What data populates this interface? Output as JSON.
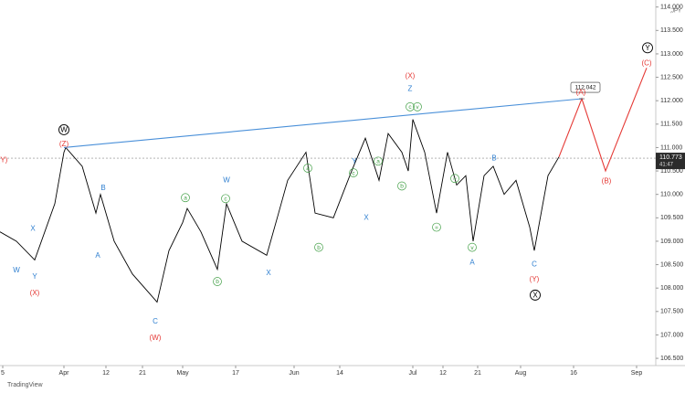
{
  "chart_data": {
    "type": "line",
    "symbol": ",JPY",
    "brand": "TradingView",
    "xlim": [
      0,
      143.6
    ],
    "ylim": [
      106.15,
      114.15
    ],
    "xticks": [
      {
        "value": 0.6,
        "label": "5"
      },
      {
        "value": 14,
        "label": "Apr"
      },
      {
        "value": 23.2,
        "label": "12"
      },
      {
        "value": 31.2,
        "label": "21"
      },
      {
        "value": 40,
        "label": "May"
      },
      {
        "value": 51.6,
        "label": "17"
      },
      {
        "value": 64.4,
        "label": "Jun"
      },
      {
        "value": 74.4,
        "label": "14"
      },
      {
        "value": 90.4,
        "label": "Jul"
      },
      {
        "value": 97,
        "label": "12"
      },
      {
        "value": 104.6,
        "label": "21"
      },
      {
        "value": 114,
        "label": "Aug"
      },
      {
        "value": 125.6,
        "label": "16"
      },
      {
        "value": 139.4,
        "label": "Sep"
      }
    ],
    "yticks": [
      {
        "value": 106.5,
        "label": "106.500"
      },
      {
        "value": 107,
        "label": "107.000"
      },
      {
        "value": 107.5,
        "label": "107.500"
      },
      {
        "value": 108,
        "label": "108.000"
      },
      {
        "value": 108.5,
        "label": "108.500"
      },
      {
        "value": 109,
        "label": "109.000"
      },
      {
        "value": 109.5,
        "label": "109.500"
      },
      {
        "value": 110,
        "label": "110.000"
      },
      {
        "value": 110.5,
        "label": "110.500"
      },
      {
        "value": 111,
        "label": "111.000"
      },
      {
        "value": 111.5,
        "label": "111.500"
      },
      {
        "value": 112,
        "label": "112.000"
      },
      {
        "value": 112.5,
        "label": "112.500"
      },
      {
        "value": 113,
        "label": "113.000"
      },
      {
        "value": 113.5,
        "label": "113.500"
      },
      {
        "value": 114,
        "label": "114.000"
      }
    ],
    "current_price": {
      "value": 110.773,
      "label": "110.773",
      "timer": "41:47"
    },
    "target": {
      "value": 112.042,
      "label": "112.042"
    },
    "series": [
      {
        "name": "USDJPY",
        "color": "#000000",
        "x": [
          0,
          3.6,
          7.6,
          12,
          14,
          14.4,
          18,
          21,
          22,
          25,
          29,
          34.4,
          37,
          40,
          41,
          44,
          47.6,
          49.6,
          53,
          58.4,
          61,
          63,
          67,
          69,
          73,
          77,
          80,
          83,
          85,
          88,
          89.4,
          90.4,
          93,
          95.6,
          98,
          100,
          102,
          103.6,
          106,
          108,
          110.4,
          113,
          116,
          117,
          120,
          122.4
        ],
        "values": [
          109.2,
          109.0,
          108.6,
          109.8,
          110.9,
          111.0,
          110.6,
          109.6,
          110.0,
          109.0,
          108.3,
          107.7,
          108.8,
          109.4,
          109.7,
          109.2,
          108.4,
          109.8,
          109.0,
          108.7,
          109.6,
          110.3,
          110.9,
          109.6,
          109.5,
          110.5,
          111.2,
          110.3,
          111.3,
          110.9,
          110.5,
          111.6,
          110.9,
          109.6,
          110.9,
          110.2,
          110.4,
          109.0,
          110.4,
          110.6,
          110.0,
          110.3,
          109.3,
          108.8,
          110.4,
          110.8
        ]
      },
      {
        "name": "Projection",
        "color": "#e53935",
        "x": [
          122.4,
          127.4,
          132.6,
          141.6
        ],
        "values": [
          110.8,
          112.042,
          110.5,
          112.7
        ]
      },
      {
        "name": "Trendline",
        "color": "#4a90d9",
        "x": [
          14,
          127.4
        ],
        "values": [
          111.0,
          112.042
        ]
      }
    ],
    "annotations": [
      {
        "text": "(Y)",
        "color": "#e53935",
        "x": 0.6,
        "y": 110.73
      },
      {
        "text": "X",
        "color": "#2f7fd0",
        "x": 7.2,
        "y": 109.26
      },
      {
        "text": "W",
        "color": "#2f7fd0",
        "x": 3.6,
        "y": 108.38
      },
      {
        "text": "Y",
        "color": "#2f7fd0",
        "x": 7.6,
        "y": 108.24
      },
      {
        "text": "(X)",
        "color": "#e53935",
        "x": 7.6,
        "y": 107.89
      },
      {
        "text": "W",
        "color": "#000000",
        "x": 14,
        "y": 111.38,
        "circled": true
      },
      {
        "text": "(Z)",
        "color": "#e53935",
        "x": 14,
        "y": 111.07
      },
      {
        "text": "B",
        "color": "#2f7fd0",
        "x": 22.6,
        "y": 110.13
      },
      {
        "text": "A",
        "color": "#2f7fd0",
        "x": 21.4,
        "y": 108.69
      },
      {
        "text": "C",
        "color": "#2f7fd0",
        "x": 34,
        "y": 107.28
      },
      {
        "text": "(W)",
        "color": "#e53935",
        "x": 34,
        "y": 106.93
      },
      {
        "text": "W",
        "color": "#2f7fd0",
        "x": 49.6,
        "y": 110.3
      },
      {
        "text": "a",
        "color": "#43a047",
        "x": 40.6,
        "y": 109.93,
        "circled": true
      },
      {
        "text": "c",
        "color": "#43a047",
        "x": 49.4,
        "y": 109.91,
        "circled": true
      },
      {
        "text": "b",
        "color": "#43a047",
        "x": 47.6,
        "y": 108.14,
        "circled": true
      },
      {
        "text": "X",
        "color": "#2f7fd0",
        "x": 58.8,
        "y": 108.32
      },
      {
        "text": "a",
        "color": "#43a047",
        "x": 67.4,
        "y": 110.56,
        "circled": true
      },
      {
        "text": "b",
        "color": "#43a047",
        "x": 69.8,
        "y": 108.87,
        "circled": true
      },
      {
        "text": "Y",
        "color": "#2f7fd0",
        "x": 77.6,
        "y": 110.7
      },
      {
        "text": "c",
        "color": "#43a047",
        "x": 77.4,
        "y": 110.46,
        "circled": true
      },
      {
        "text": "X",
        "color": "#2f7fd0",
        "x": 80.2,
        "y": 109.5
      },
      {
        "text": "a",
        "color": "#43a047",
        "x": 82.8,
        "y": 110.71,
        "circled": true
      },
      {
        "text": "b",
        "color": "#43a047",
        "x": 88,
        "y": 110.18,
        "circled": true
      },
      {
        "text": "(X)",
        "color": "#e53935",
        "x": 89.8,
        "y": 112.52
      },
      {
        "text": "Z",
        "color": "#2f7fd0",
        "x": 89.8,
        "y": 112.25
      },
      {
        "text": "c",
        "color": "#43a047",
        "x": 89.8,
        "y": 111.87,
        "circled": true
      },
      {
        "text": "v",
        "color": "#43a047",
        "x": 91.4,
        "y": 111.87,
        "circled": true
      },
      {
        "text": "iv",
        "color": "#43a047",
        "x": 99.6,
        "y": 110.34,
        "circled": true
      },
      {
        "text": "iii",
        "color": "#43a047",
        "x": 95.6,
        "y": 109.3,
        "circled": true
      },
      {
        "text": "B",
        "color": "#2f7fd0",
        "x": 108.2,
        "y": 110.77
      },
      {
        "text": "v",
        "color": "#43a047",
        "x": 103.4,
        "y": 108.87,
        "circled": true
      },
      {
        "text": "A",
        "color": "#2f7fd0",
        "x": 103.4,
        "y": 108.54
      },
      {
        "text": "C",
        "color": "#2f7fd0",
        "x": 117,
        "y": 108.5
      },
      {
        "text": "(Y)",
        "color": "#e53935",
        "x": 117,
        "y": 108.18
      },
      {
        "text": "X",
        "color": "#000000",
        "x": 117.2,
        "y": 107.85,
        "circled": true
      },
      {
        "text": "(A)",
        "color": "#e53935",
        "x": 127.2,
        "y": 112.17
      },
      {
        "text": "(B)",
        "color": "#e53935",
        "x": 132.8,
        "y": 110.28
      },
      {
        "text": "(C)",
        "color": "#e53935",
        "x": 141.6,
        "y": 112.8
      },
      {
        "text": "Y",
        "color": "#000000",
        "x": 141.8,
        "y": 113.13,
        "circled": true
      }
    ]
  }
}
